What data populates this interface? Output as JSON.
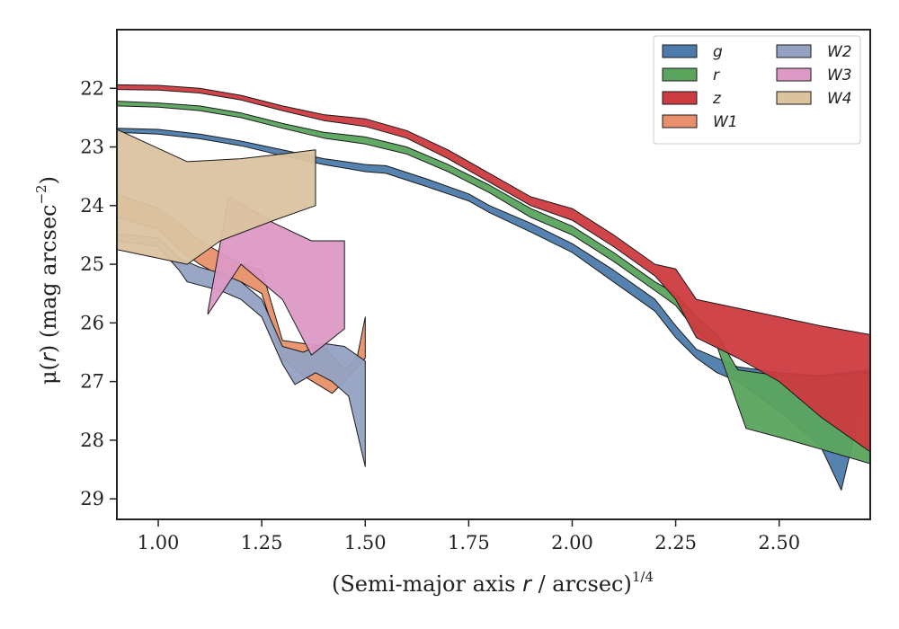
{
  "chart_data": {
    "type": "area",
    "xlabel": "(Semi-major axis r / arcsec)",
    "xlabel_prefix": "(Semi-major axis ",
    "xlabel_var": "r",
    "xlabel_mid": " / arcsec)",
    "xlabel_sup": "1/4",
    "ylabel": "μ(r) (mag arcsec⁻²)",
    "ylabel_prefix": "μ(",
    "ylabel_var": "r",
    "ylabel_mid": ") (mag arcsec",
    "ylabel_sup": "−2",
    "ylabel_end": ")",
    "xlim": [
      0.9,
      2.72
    ],
    "ylim": [
      29.35,
      21.0
    ],
    "y_inverted": true,
    "xticks": [
      1.0,
      1.25,
      1.5,
      1.75,
      2.0,
      2.25,
      2.5
    ],
    "xtick_labels": [
      "1.00",
      "1.25",
      "1.50",
      "1.75",
      "2.00",
      "2.25",
      "2.50"
    ],
    "yticks": [
      22,
      23,
      24,
      25,
      26,
      27,
      28,
      29
    ],
    "ytick_labels": [
      "22",
      "23",
      "24",
      "25",
      "26",
      "27",
      "28",
      "29"
    ],
    "grid": false,
    "legend": {
      "placement": "top-right",
      "columns": 2
    },
    "series": [
      {
        "name": "g",
        "color": "#4c7bab",
        "upper": [
          [
            0.9,
            22.68
          ],
          [
            1.0,
            22.7
          ],
          [
            1.1,
            22.78
          ],
          [
            1.2,
            22.9
          ],
          [
            1.3,
            23.05
          ],
          [
            1.4,
            23.2
          ],
          [
            1.5,
            23.3
          ],
          [
            1.55,
            23.32
          ],
          [
            1.65,
            23.55
          ],
          [
            1.75,
            23.8
          ],
          [
            1.8,
            24.0
          ],
          [
            1.9,
            24.3
          ],
          [
            2.0,
            24.65
          ],
          [
            2.1,
            25.1
          ],
          [
            2.2,
            25.6
          ],
          [
            2.25,
            26.05
          ],
          [
            2.3,
            26.45
          ],
          [
            2.4,
            26.75
          ],
          [
            2.5,
            26.85
          ],
          [
            2.6,
            26.9
          ],
          [
            2.72,
            26.8
          ]
        ],
        "lower": [
          [
            0.9,
            22.75
          ],
          [
            1.0,
            22.78
          ],
          [
            1.1,
            22.86
          ],
          [
            1.2,
            22.98
          ],
          [
            1.3,
            23.15
          ],
          [
            1.4,
            23.3
          ],
          [
            1.5,
            23.42
          ],
          [
            1.55,
            23.45
          ],
          [
            1.65,
            23.68
          ],
          [
            1.75,
            23.92
          ],
          [
            1.8,
            24.12
          ],
          [
            1.9,
            24.45
          ],
          [
            2.0,
            24.8
          ],
          [
            2.1,
            25.3
          ],
          [
            2.2,
            25.8
          ],
          [
            2.25,
            26.25
          ],
          [
            2.3,
            26.6
          ],
          [
            2.35,
            26.85
          ],
          [
            2.4,
            27.0
          ],
          [
            2.5,
            27.5
          ],
          [
            2.6,
            28.1
          ],
          [
            2.65,
            28.85
          ]
        ]
      },
      {
        "name": "r",
        "color": "#5ba45e",
        "upper": [
          [
            0.9,
            22.22
          ],
          [
            1.0,
            22.25
          ],
          [
            1.1,
            22.3
          ],
          [
            1.2,
            22.42
          ],
          [
            1.3,
            22.6
          ],
          [
            1.4,
            22.75
          ],
          [
            1.5,
            22.83
          ],
          [
            1.6,
            23.0
          ],
          [
            1.7,
            23.3
          ],
          [
            1.8,
            23.65
          ],
          [
            1.9,
            24.05
          ],
          [
            2.0,
            24.35
          ],
          [
            2.1,
            24.8
          ],
          [
            2.2,
            25.3
          ],
          [
            2.25,
            25.5
          ],
          [
            2.3,
            25.9
          ],
          [
            2.35,
            26.2
          ],
          [
            2.4,
            26.8
          ],
          [
            2.5,
            26.9
          ],
          [
            2.6,
            26.9
          ],
          [
            2.72,
            26.85
          ]
        ],
        "lower": [
          [
            0.9,
            22.3
          ],
          [
            1.0,
            22.32
          ],
          [
            1.1,
            22.38
          ],
          [
            1.2,
            22.5
          ],
          [
            1.3,
            22.68
          ],
          [
            1.4,
            22.85
          ],
          [
            1.5,
            22.95
          ],
          [
            1.6,
            23.12
          ],
          [
            1.7,
            23.42
          ],
          [
            1.8,
            23.78
          ],
          [
            1.9,
            24.2
          ],
          [
            2.0,
            24.5
          ],
          [
            2.1,
            24.95
          ],
          [
            2.2,
            25.45
          ],
          [
            2.25,
            25.7
          ],
          [
            2.3,
            26.15
          ],
          [
            2.35,
            26.4
          ],
          [
            2.42,
            27.8
          ],
          [
            2.5,
            27.95
          ],
          [
            2.6,
            28.15
          ],
          [
            2.72,
            28.4
          ]
        ]
      },
      {
        "name": "z",
        "color": "#cc3b3f",
        "upper": [
          [
            0.9,
            21.94
          ],
          [
            1.0,
            21.95
          ],
          [
            1.1,
            22.0
          ],
          [
            1.2,
            22.12
          ],
          [
            1.3,
            22.3
          ],
          [
            1.4,
            22.45
          ],
          [
            1.5,
            22.52
          ],
          [
            1.6,
            22.72
          ],
          [
            1.7,
            23.05
          ],
          [
            1.8,
            23.45
          ],
          [
            1.9,
            23.85
          ],
          [
            2.0,
            24.05
          ],
          [
            2.1,
            24.5
          ],
          [
            2.2,
            25.0
          ],
          [
            2.25,
            25.08
          ],
          [
            2.3,
            25.6
          ],
          [
            2.4,
            25.75
          ],
          [
            2.5,
            25.9
          ],
          [
            2.6,
            26.05
          ],
          [
            2.72,
            26.2
          ]
        ],
        "lower": [
          [
            0.9,
            22.02
          ],
          [
            1.0,
            22.03
          ],
          [
            1.1,
            22.08
          ],
          [
            1.2,
            22.2
          ],
          [
            1.3,
            22.38
          ],
          [
            1.4,
            22.55
          ],
          [
            1.5,
            22.65
          ],
          [
            1.6,
            22.85
          ],
          [
            1.7,
            23.2
          ],
          [
            1.8,
            23.6
          ],
          [
            1.9,
            24.0
          ],
          [
            2.0,
            24.25
          ],
          [
            2.1,
            24.7
          ],
          [
            2.2,
            25.2
          ],
          [
            2.25,
            25.6
          ],
          [
            2.3,
            26.25
          ],
          [
            2.4,
            26.6
          ],
          [
            2.5,
            27.0
          ],
          [
            2.6,
            27.6
          ],
          [
            2.72,
            28.2
          ]
        ]
      },
      {
        "name": "W1",
        "color": "#e8906c",
        "upper": [
          [
            0.9,
            23.8
          ],
          [
            1.0,
            24.05
          ],
          [
            1.05,
            24.3
          ],
          [
            1.1,
            24.6
          ],
          [
            1.15,
            24.8
          ],
          [
            1.2,
            25.0
          ],
          [
            1.25,
            25.1
          ],
          [
            1.3,
            26.3
          ],
          [
            1.35,
            26.35
          ],
          [
            1.4,
            26.4
          ],
          [
            1.45,
            26.8
          ],
          [
            1.48,
            26.6
          ],
          [
            1.5,
            25.9
          ]
        ],
        "lower": [
          [
            0.9,
            24.2
          ],
          [
            1.0,
            24.4
          ],
          [
            1.05,
            24.75
          ],
          [
            1.1,
            25.0
          ],
          [
            1.15,
            25.2
          ],
          [
            1.2,
            25.3
          ],
          [
            1.25,
            25.5
          ],
          [
            1.3,
            26.6
          ],
          [
            1.35,
            26.9
          ],
          [
            1.42,
            27.2
          ],
          [
            1.45,
            27.0
          ],
          [
            1.48,
            26.75
          ],
          [
            1.5,
            26.6
          ]
        ]
      },
      {
        "name": "W2",
        "color": "#94a1c2",
        "upper": [
          [
            0.9,
            24.48
          ],
          [
            1.0,
            24.55
          ],
          [
            1.05,
            24.9
          ],
          [
            1.1,
            25.05
          ],
          [
            1.15,
            25.15
          ],
          [
            1.2,
            25.3
          ],
          [
            1.25,
            25.6
          ],
          [
            1.3,
            26.4
          ],
          [
            1.35,
            26.5
          ],
          [
            1.4,
            26.35
          ],
          [
            1.45,
            26.4
          ],
          [
            1.5,
            26.65
          ]
        ],
        "lower": [
          [
            0.9,
            24.6
          ],
          [
            1.0,
            24.7
          ],
          [
            1.05,
            25.1
          ],
          [
            1.07,
            25.3
          ],
          [
            1.15,
            25.45
          ],
          [
            1.2,
            25.6
          ],
          [
            1.25,
            25.9
          ],
          [
            1.3,
            26.7
          ],
          [
            1.33,
            27.05
          ],
          [
            1.38,
            26.85
          ],
          [
            1.42,
            27.0
          ],
          [
            1.46,
            27.25
          ],
          [
            1.5,
            28.45
          ]
        ]
      },
      {
        "name": "W3",
        "color": "#dc99c5",
        "upper": [
          [
            1.12,
            25.8
          ],
          [
            1.17,
            23.85
          ],
          [
            1.28,
            24.3
          ],
          [
            1.37,
            24.6
          ],
          [
            1.45,
            24.6
          ]
        ],
        "lower": [
          [
            1.12,
            25.85
          ],
          [
            1.2,
            25.0
          ],
          [
            1.3,
            25.6
          ],
          [
            1.37,
            26.55
          ],
          [
            1.45,
            26.1
          ]
        ]
      },
      {
        "name": "W4",
        "color": "#dbc3a0",
        "upper": [
          [
            0.9,
            22.7
          ],
          [
            1.07,
            23.25
          ],
          [
            1.2,
            23.2
          ],
          [
            1.3,
            23.12
          ],
          [
            1.38,
            23.05
          ]
        ],
        "lower": [
          [
            0.9,
            24.75
          ],
          [
            1.07,
            25.0
          ],
          [
            1.15,
            24.6
          ],
          [
            1.28,
            24.25
          ],
          [
            1.38,
            24.0
          ]
        ]
      }
    ]
  }
}
